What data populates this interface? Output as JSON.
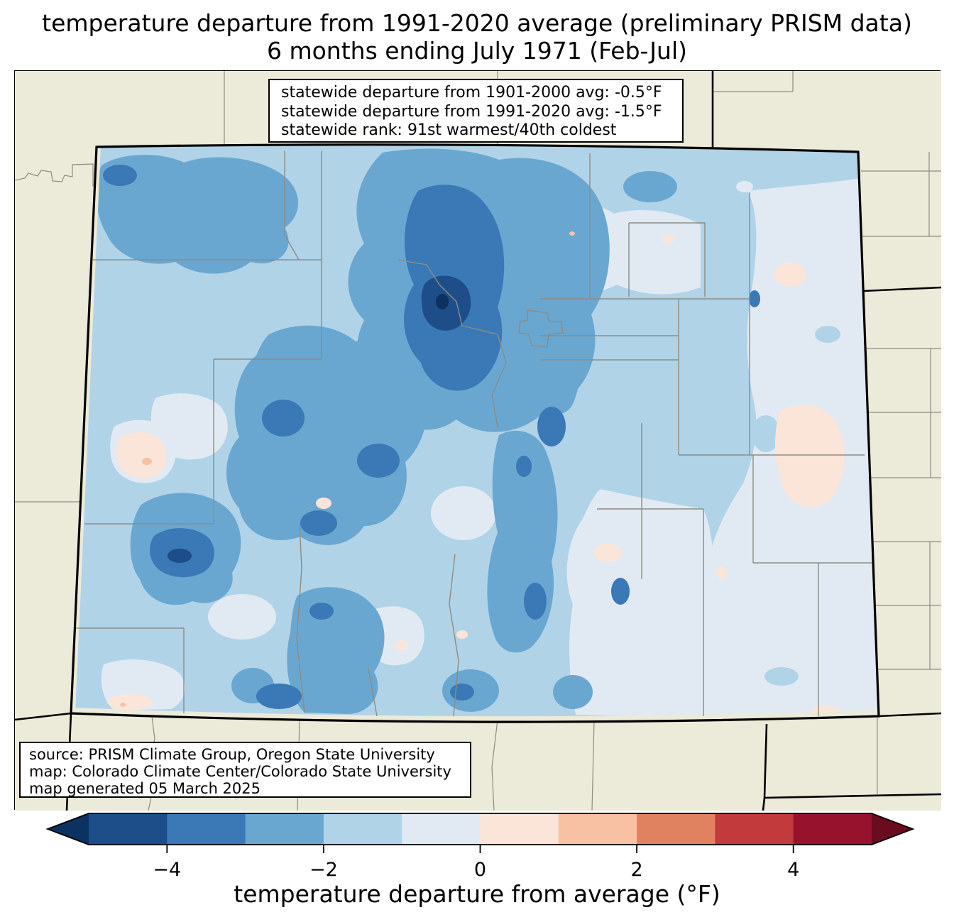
{
  "title": {
    "line1": "temperature departure from 1991-2020 average (preliminary PRISM data)",
    "line2": "6 months ending July 1971 (Feb-Jul)"
  },
  "stats_box": {
    "line1": "statewide departure from 1901-2000 avg: -0.5°F",
    "line2": "statewide departure from 1991-2020 avg: -1.5°F",
    "line3": "statewide rank: 91st warmest/40th coldest"
  },
  "source_box": {
    "line1": "source: PRISM Climate Group, Oregon State University",
    "line2": "map: Colorado Climate Center/Colorado State University",
    "line3": "map generated 05 March 2025"
  },
  "colorbar": {
    "label": "temperature departure from average (°F)",
    "min": -5,
    "max": 5,
    "under_color": "#0d3160",
    "over_color": "#6b0b20",
    "segments": [
      {
        "from": -5,
        "to": -4,
        "color": "#1d4e89"
      },
      {
        "from": -4,
        "to": -3,
        "color": "#3a78b6"
      },
      {
        "from": -3,
        "to": -2,
        "color": "#6aa7d0"
      },
      {
        "from": -2,
        "to": -1,
        "color": "#b0d3e8"
      },
      {
        "from": -1,
        "to": 0,
        "color": "#e1eaf3"
      },
      {
        "from": 0,
        "to": 1,
        "color": "#fbe5d8"
      },
      {
        "from": 1,
        "to": 2,
        "color": "#f8c1a4"
      },
      {
        "from": 2,
        "to": 3,
        "color": "#e0825f"
      },
      {
        "from": 3,
        "to": 4,
        "color": "#c23a3b"
      },
      {
        "from": 4,
        "to": 5,
        "color": "#97122c"
      }
    ],
    "ticks": [
      {
        "value": -4,
        "label": "−4"
      },
      {
        "value": -2,
        "label": "−2"
      },
      {
        "value": 0,
        "label": "0"
      },
      {
        "value": 2,
        "label": "2"
      },
      {
        "value": 4,
        "label": "4"
      }
    ]
  },
  "map": {
    "region": "Colorado",
    "palette": {
      "bin_m5_m4": "#1d4e89",
      "bin_m4_m3": "#3a78b6",
      "bin_m3_m2": "#6aa7d0",
      "bin_m2_m1": "#b0d3e8",
      "bin_m1_0": "#e1eaf3",
      "bin_0_1": "#fbe5d8",
      "bin_1_2": "#f8c1a4",
      "under": "#0d3160",
      "no_data_background": "#ecead8",
      "county_line": "#8c8c84",
      "state_border": "#000000"
    }
  }
}
